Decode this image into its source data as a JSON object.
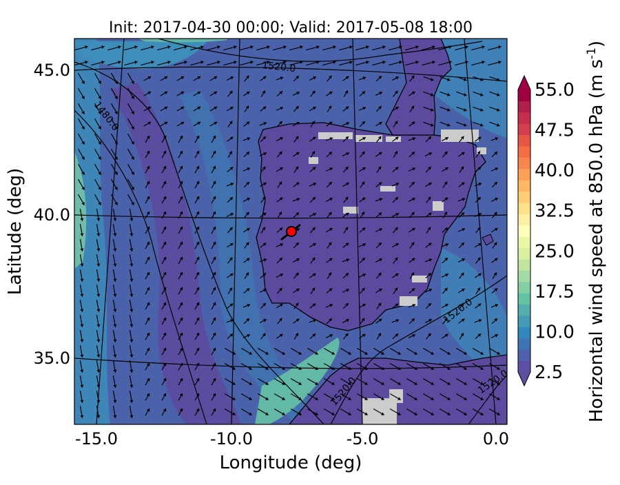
{
  "title": "Init: 2017-04-30 00:00; Valid: 2017-05-08 18:00",
  "axes": {
    "xlabel": "Longitude (deg)",
    "ylabel": "Latitude (deg)",
    "xticks": [
      "-15.0",
      "-10.0",
      "-5.0",
      "0.0"
    ],
    "yticks": [
      "45.0",
      "40.0",
      "35.0"
    ]
  },
  "colorbar": {
    "label": "Horizontal wind speed at 850.0 hPa (m s",
    "label_sup": "-1",
    "label_end": ")",
    "tick_labels": [
      "55.0",
      "47.5",
      "40.0",
      "32.5",
      "25.0",
      "17.5",
      "10.0",
      "2.5"
    ],
    "ticks": [
      55.0,
      47.5,
      40.0,
      32.5,
      25.0,
      17.5,
      10.0,
      2.5
    ],
    "min": 2.5,
    "max": 55.0,
    "step": 2.5,
    "colors": [
      "#5e4fa2",
      "#4f61aa",
      "#3f74b2",
      "#3288bd",
      "#439bb5",
      "#55aeac",
      "#66c2a5",
      "#85cfa5",
      "#a3dba4",
      "#bfe5a0",
      "#d9f0a3",
      "#ebf7a7",
      "#fefebd",
      "#fff0a8",
      "#fee08b",
      "#fecd76",
      "#fdb863",
      "#fca05a",
      "#f98550",
      "#f46d43",
      "#e65845",
      "#d53e4f",
      "#c52e4c",
      "#b01e4c",
      "#9e0142"
    ]
  },
  "contours": [
    {
      "label": "1520.0"
    },
    {
      "label": "1480.0"
    },
    {
      "label": "1520.0"
    },
    {
      "label": "1520.0"
    },
    {
      "label": "1520.0"
    }
  ],
  "marker": {
    "name": "site-marker",
    "lon": -7.7,
    "lat": 39.3,
    "color": "#ff0000"
  },
  "map_colors": {
    "background": "#4a5fa8",
    "land": "#5b4a9e",
    "missing": "#cccccc",
    "jet": "#5fb8a6"
  }
}
